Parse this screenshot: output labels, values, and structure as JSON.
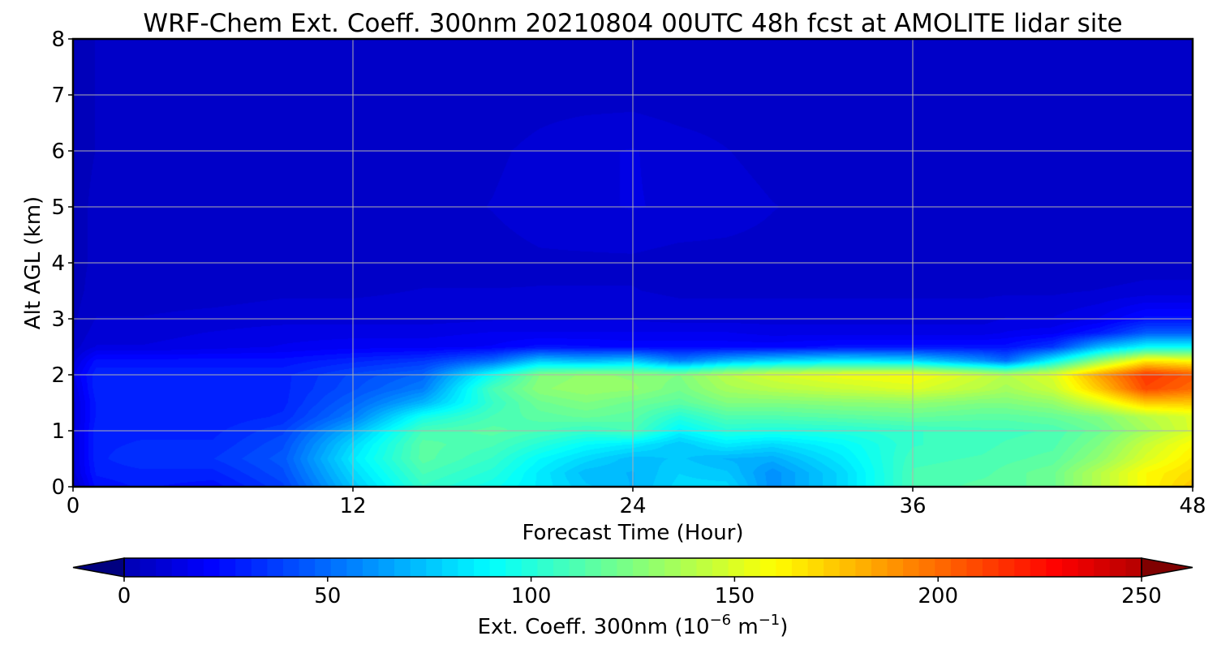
{
  "chart_data": {
    "type": "heatmap",
    "title": "WRF-Chem Ext. Coeff. 300nm  20210804 00UTC 48h fcst at AMOLITE lidar site",
    "xlabel": "Forecast Time (Hour)",
    "ylabel": "Alt AGL (km)",
    "xlim": [
      0,
      48
    ],
    "ylim": [
      0,
      8
    ],
    "xticks": [
      "0",
      "12",
      "24",
      "36",
      "48"
    ],
    "yticks": [
      "0",
      "1",
      "2",
      "3",
      "4",
      "5",
      "6",
      "7",
      "8"
    ],
    "grid": true,
    "colormap": "jet",
    "colorbar": {
      "label_main": "Ext. Coeff. 300nm  (10",
      "label_exp1": "−6",
      "label_mid": " m",
      "label_exp2": "−1",
      "label_end": ")",
      "range": [
        0,
        250
      ],
      "ticks": [
        "0",
        "50",
        "100",
        "150",
        "200",
        "250"
      ],
      "extend": "both"
    },
    "x_hours": [
      0,
      1,
      3,
      6,
      9,
      12,
      15,
      18,
      20,
      22,
      24,
      26,
      28,
      30,
      33,
      36,
      39,
      40,
      42,
      44,
      46,
      48
    ],
    "z_km": [
      0,
      0.25,
      0.5,
      0.75,
      1.0,
      1.25,
      1.5,
      1.75,
      2.0,
      2.25,
      2.5,
      2.75,
      3.0,
      3.5,
      4.0,
      5.0,
      6.0,
      7.0,
      8.0
    ],
    "values": [
      [
        5,
        25,
        28,
        25,
        38,
        75,
        105,
        95,
        85,
        75,
        70,
        80,
        80,
        60,
        80,
        110,
        115,
        115,
        120,
        140,
        160,
        175
      ],
      [
        10,
        28,
        30,
        30,
        42,
        80,
        110,
        100,
        85,
        72,
        70,
        78,
        75,
        60,
        80,
        110,
        112,
        115,
        120,
        140,
        160,
        170
      ],
      [
        10,
        30,
        35,
        35,
        45,
        85,
        115,
        105,
        90,
        80,
        72,
        75,
        70,
        68,
        85,
        108,
        110,
        112,
        115,
        130,
        150,
        165
      ],
      [
        10,
        30,
        32,
        32,
        42,
        80,
        115,
        110,
        100,
        90,
        85,
        75,
        85,
        80,
        90,
        105,
        108,
        110,
        112,
        125,
        145,
        160
      ],
      [
        10,
        30,
        30,
        30,
        38,
        70,
        110,
        115,
        110,
        105,
        110,
        88,
        100,
        98,
        100,
        105,
        108,
        108,
        110,
        120,
        135,
        150
      ],
      [
        10,
        28,
        28,
        28,
        32,
        55,
        95,
        110,
        115,
        118,
        115,
        100,
        112,
        112,
        115,
        118,
        115,
        115,
        118,
        125,
        140,
        150
      ],
      [
        10,
        28,
        28,
        28,
        30,
        48,
        70,
        105,
        120,
        125,
        120,
        115,
        125,
        125,
        128,
        130,
        125,
        125,
        130,
        150,
        175,
        175
      ],
      [
        12,
        30,
        30,
        28,
        30,
        42,
        55,
        110,
        128,
        132,
        130,
        122,
        135,
        140,
        145,
        150,
        140,
        135,
        145,
        175,
        210,
        200
      ],
      [
        15,
        30,
        30,
        30,
        30,
        40,
        48,
        95,
        125,
        130,
        128,
        125,
        140,
        148,
        155,
        158,
        145,
        140,
        150,
        185,
        215,
        205
      ],
      [
        10,
        25,
        25,
        25,
        25,
        30,
        35,
        50,
        75,
        70,
        75,
        55,
        70,
        78,
        85,
        80,
        60,
        50,
        90,
        130,
        165,
        160
      ],
      [
        6,
        12,
        12,
        14,
        16,
        18,
        18,
        20,
        25,
        24,
        22,
        22,
        22,
        22,
        25,
        25,
        25,
        25,
        35,
        70,
        90,
        90
      ],
      [
        4,
        10,
        10,
        12,
        14,
        14,
        14,
        16,
        16,
        16,
        16,
        16,
        16,
        14,
        14,
        14,
        14,
        16,
        18,
        28,
        45,
        45
      ],
      [
        3,
        8,
        8,
        9,
        10,
        10,
        10,
        11,
        11,
        11,
        11,
        10,
        10,
        10,
        10,
        10,
        10,
        12,
        12,
        16,
        25,
        25
      ],
      [
        2,
        6,
        6,
        6,
        7,
        7,
        8,
        8,
        8,
        8,
        8,
        7,
        7,
        7,
        7,
        7,
        7,
        7,
        7,
        8,
        9,
        9
      ],
      [
        2,
        5,
        5,
        5,
        5,
        5,
        6,
        6,
        7,
        7,
        7,
        6,
        6,
        6,
        6,
        5,
        5,
        5,
        5,
        5,
        6,
        6
      ],
      [
        2,
        5,
        5,
        5,
        5,
        5,
        6,
        8,
        10,
        11,
        12,
        11,
        10,
        8,
        6,
        5,
        5,
        5,
        5,
        5,
        5,
        5
      ],
      [
        2,
        4,
        4,
        4,
        4,
        4,
        5,
        7,
        9,
        11,
        12,
        10,
        8,
        6,
        5,
        4,
        4,
        4,
        4,
        4,
        4,
        4
      ],
      [
        2,
        4,
        4,
        4,
        4,
        4,
        4,
        5,
        6,
        6,
        6,
        5,
        5,
        4,
        4,
        4,
        4,
        4,
        4,
        4,
        4,
        4
      ],
      [
        2,
        4,
        4,
        4,
        4,
        4,
        4,
        4,
        4,
        4,
        4,
        4,
        4,
        4,
        4,
        4,
        4,
        4,
        4,
        4,
        4,
        4
      ]
    ]
  }
}
